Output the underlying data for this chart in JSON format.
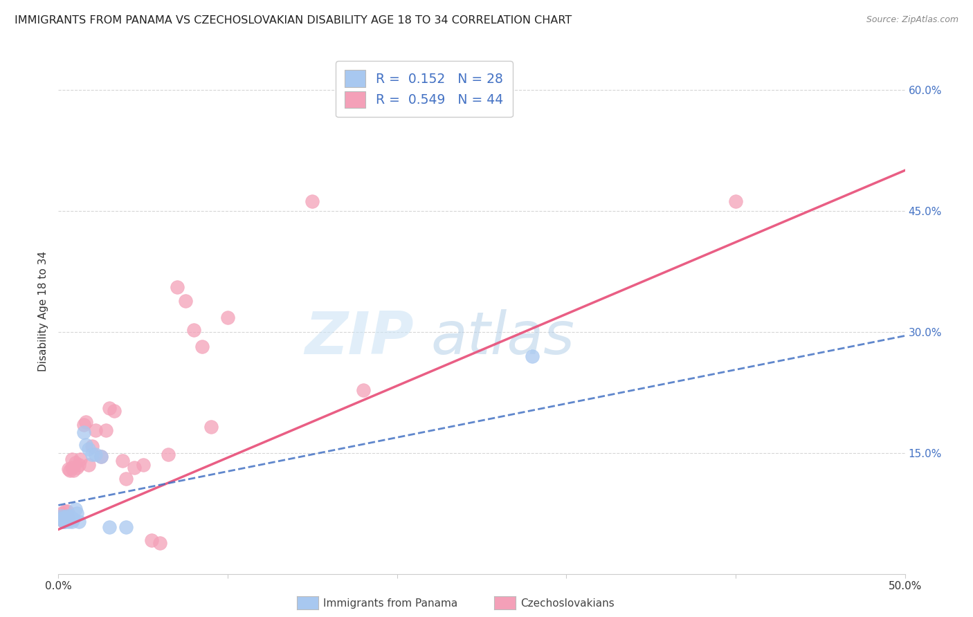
{
  "title": "IMMIGRANTS FROM PANAMA VS CZECHOSLOVAKIAN DISABILITY AGE 18 TO 34 CORRELATION CHART",
  "source": "Source: ZipAtlas.com",
  "ylabel": "Disability Age 18 to 34",
  "xlim": [
    0.0,
    0.5
  ],
  "ylim": [
    0.0,
    0.65
  ],
  "xticks": [
    0.0,
    0.1,
    0.2,
    0.3,
    0.4,
    0.5
  ],
  "xticklabels": [
    "0.0%",
    "",
    "",
    "",
    "",
    "50.0%"
  ],
  "yticks_right": [
    0.0,
    0.15,
    0.3,
    0.45,
    0.6
  ],
  "yticklabels_right": [
    "",
    "15.0%",
    "30.0%",
    "45.0%",
    "60.0%"
  ],
  "grid_color": "#cccccc",
  "background_color": "#ffffff",
  "panama_R": "0.152",
  "panama_N": "28",
  "czech_R": "0.549",
  "czech_N": "44",
  "panama_color": "#a8c8f0",
  "czech_color": "#f4a0b8",
  "panama_line_color": "#4472c4",
  "czech_line_color": "#e8507a",
  "panama_line_x0": 0.0,
  "panama_line_y0": 0.085,
  "panama_line_x1": 0.5,
  "panama_line_y1": 0.295,
  "czech_line_x0": 0.0,
  "czech_line_y0": 0.055,
  "czech_line_x1": 0.5,
  "czech_line_y1": 0.5,
  "panama_points": [
    [
      0.001,
      0.068
    ],
    [
      0.002,
      0.072
    ],
    [
      0.002,
      0.068
    ],
    [
      0.003,
      0.065
    ],
    [
      0.003,
      0.07
    ],
    [
      0.004,
      0.068
    ],
    [
      0.004,
      0.065
    ],
    [
      0.005,
      0.068
    ],
    [
      0.005,
      0.072
    ],
    [
      0.006,
      0.07
    ],
    [
      0.006,
      0.065
    ],
    [
      0.007,
      0.068
    ],
    [
      0.007,
      0.072
    ],
    [
      0.008,
      0.068
    ],
    [
      0.008,
      0.065
    ],
    [
      0.009,
      0.068
    ],
    [
      0.01,
      0.08
    ],
    [
      0.011,
      0.075
    ],
    [
      0.012,
      0.065
    ],
    [
      0.015,
      0.175
    ],
    [
      0.016,
      0.16
    ],
    [
      0.018,
      0.155
    ],
    [
      0.02,
      0.148
    ],
    [
      0.022,
      0.148
    ],
    [
      0.025,
      0.145
    ],
    [
      0.03,
      0.058
    ],
    [
      0.04,
      0.058
    ],
    [
      0.28,
      0.27
    ]
  ],
  "czech_points": [
    [
      0.001,
      0.068
    ],
    [
      0.002,
      0.075
    ],
    [
      0.002,
      0.068
    ],
    [
      0.003,
      0.065
    ],
    [
      0.003,
      0.072
    ],
    [
      0.004,
      0.068
    ],
    [
      0.004,
      0.078
    ],
    [
      0.005,
      0.07
    ],
    [
      0.005,
      0.078
    ],
    [
      0.006,
      0.068
    ],
    [
      0.006,
      0.13
    ],
    [
      0.007,
      0.128
    ],
    [
      0.008,
      0.132
    ],
    [
      0.008,
      0.142
    ],
    [
      0.009,
      0.128
    ],
    [
      0.01,
      0.138
    ],
    [
      0.011,
      0.132
    ],
    [
      0.012,
      0.135
    ],
    [
      0.013,
      0.142
    ],
    [
      0.015,
      0.185
    ],
    [
      0.016,
      0.188
    ],
    [
      0.018,
      0.135
    ],
    [
      0.02,
      0.158
    ],
    [
      0.022,
      0.178
    ],
    [
      0.025,
      0.145
    ],
    [
      0.028,
      0.178
    ],
    [
      0.03,
      0.205
    ],
    [
      0.033,
      0.202
    ],
    [
      0.038,
      0.14
    ],
    [
      0.04,
      0.118
    ],
    [
      0.045,
      0.132
    ],
    [
      0.05,
      0.135
    ],
    [
      0.055,
      0.042
    ],
    [
      0.06,
      0.038
    ],
    [
      0.065,
      0.148
    ],
    [
      0.07,
      0.355
    ],
    [
      0.075,
      0.338
    ],
    [
      0.08,
      0.302
    ],
    [
      0.085,
      0.282
    ],
    [
      0.09,
      0.182
    ],
    [
      0.1,
      0.318
    ],
    [
      0.15,
      0.462
    ],
    [
      0.18,
      0.228
    ],
    [
      0.4,
      0.462
    ]
  ]
}
